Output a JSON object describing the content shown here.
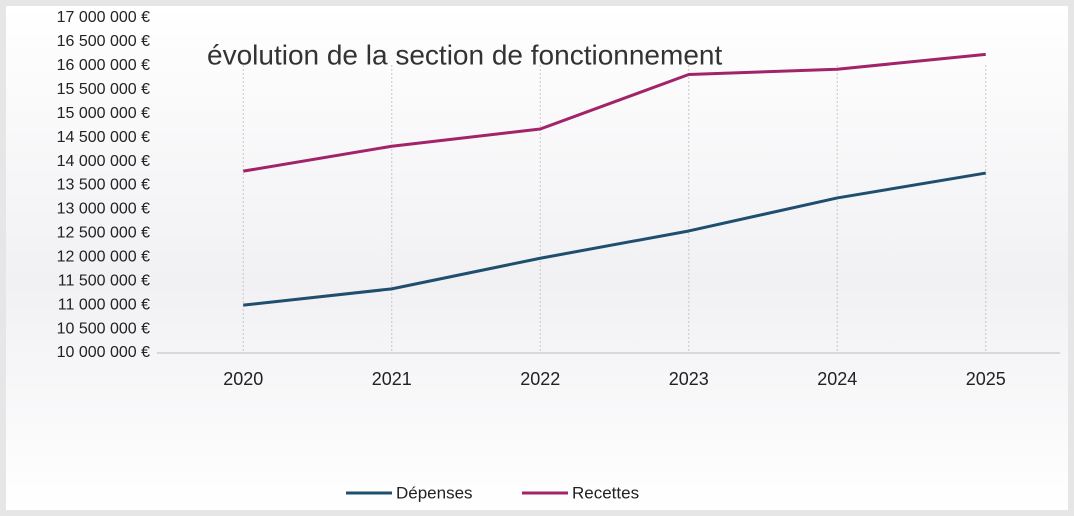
{
  "chart_data": {
    "type": "line",
    "title": "évolution de la section de fonctionnement",
    "categories": [
      "2020",
      "2021",
      "2022",
      "2023",
      "2024",
      "2025"
    ],
    "series": [
      {
        "name": "Dépenses",
        "color": "#1f4e6e",
        "values": [
          11000000,
          11340000,
          11980000,
          12550000,
          13240000,
          13760000
        ]
      },
      {
        "name": "Recettes",
        "color": "#a3236b",
        "values": [
          13800000,
          14320000,
          14680000,
          15820000,
          15930000,
          16240000
        ]
      }
    ],
    "ylim": [
      10000000,
      17000000
    ],
    "yticks": [
      {
        "value": 10000000,
        "label": "10 000 000 €"
      },
      {
        "value": 10500000,
        "label": "10 500 000 €"
      },
      {
        "value": 11000000,
        "label": "11 000 000 €"
      },
      {
        "value": 11500000,
        "label": "11 500 000 €"
      },
      {
        "value": 12000000,
        "label": "12 000 000 €"
      },
      {
        "value": 12500000,
        "label": "12 500 000 €"
      },
      {
        "value": 13000000,
        "label": "13 000 000 €"
      },
      {
        "value": 13500000,
        "label": "13 500 000 €"
      },
      {
        "value": 14000000,
        "label": "14 000 000 €"
      },
      {
        "value": 14500000,
        "label": "14 500 000 €"
      },
      {
        "value": 15000000,
        "label": "15 000 000 €"
      },
      {
        "value": 15500000,
        "label": "15 500 000 €"
      },
      {
        "value": 16000000,
        "label": "16 000 000 €"
      },
      {
        "value": 16500000,
        "label": "16 500 000 €"
      },
      {
        "value": 17000000,
        "label": "17 000 000 €"
      }
    ],
    "legend": "bottom"
  }
}
